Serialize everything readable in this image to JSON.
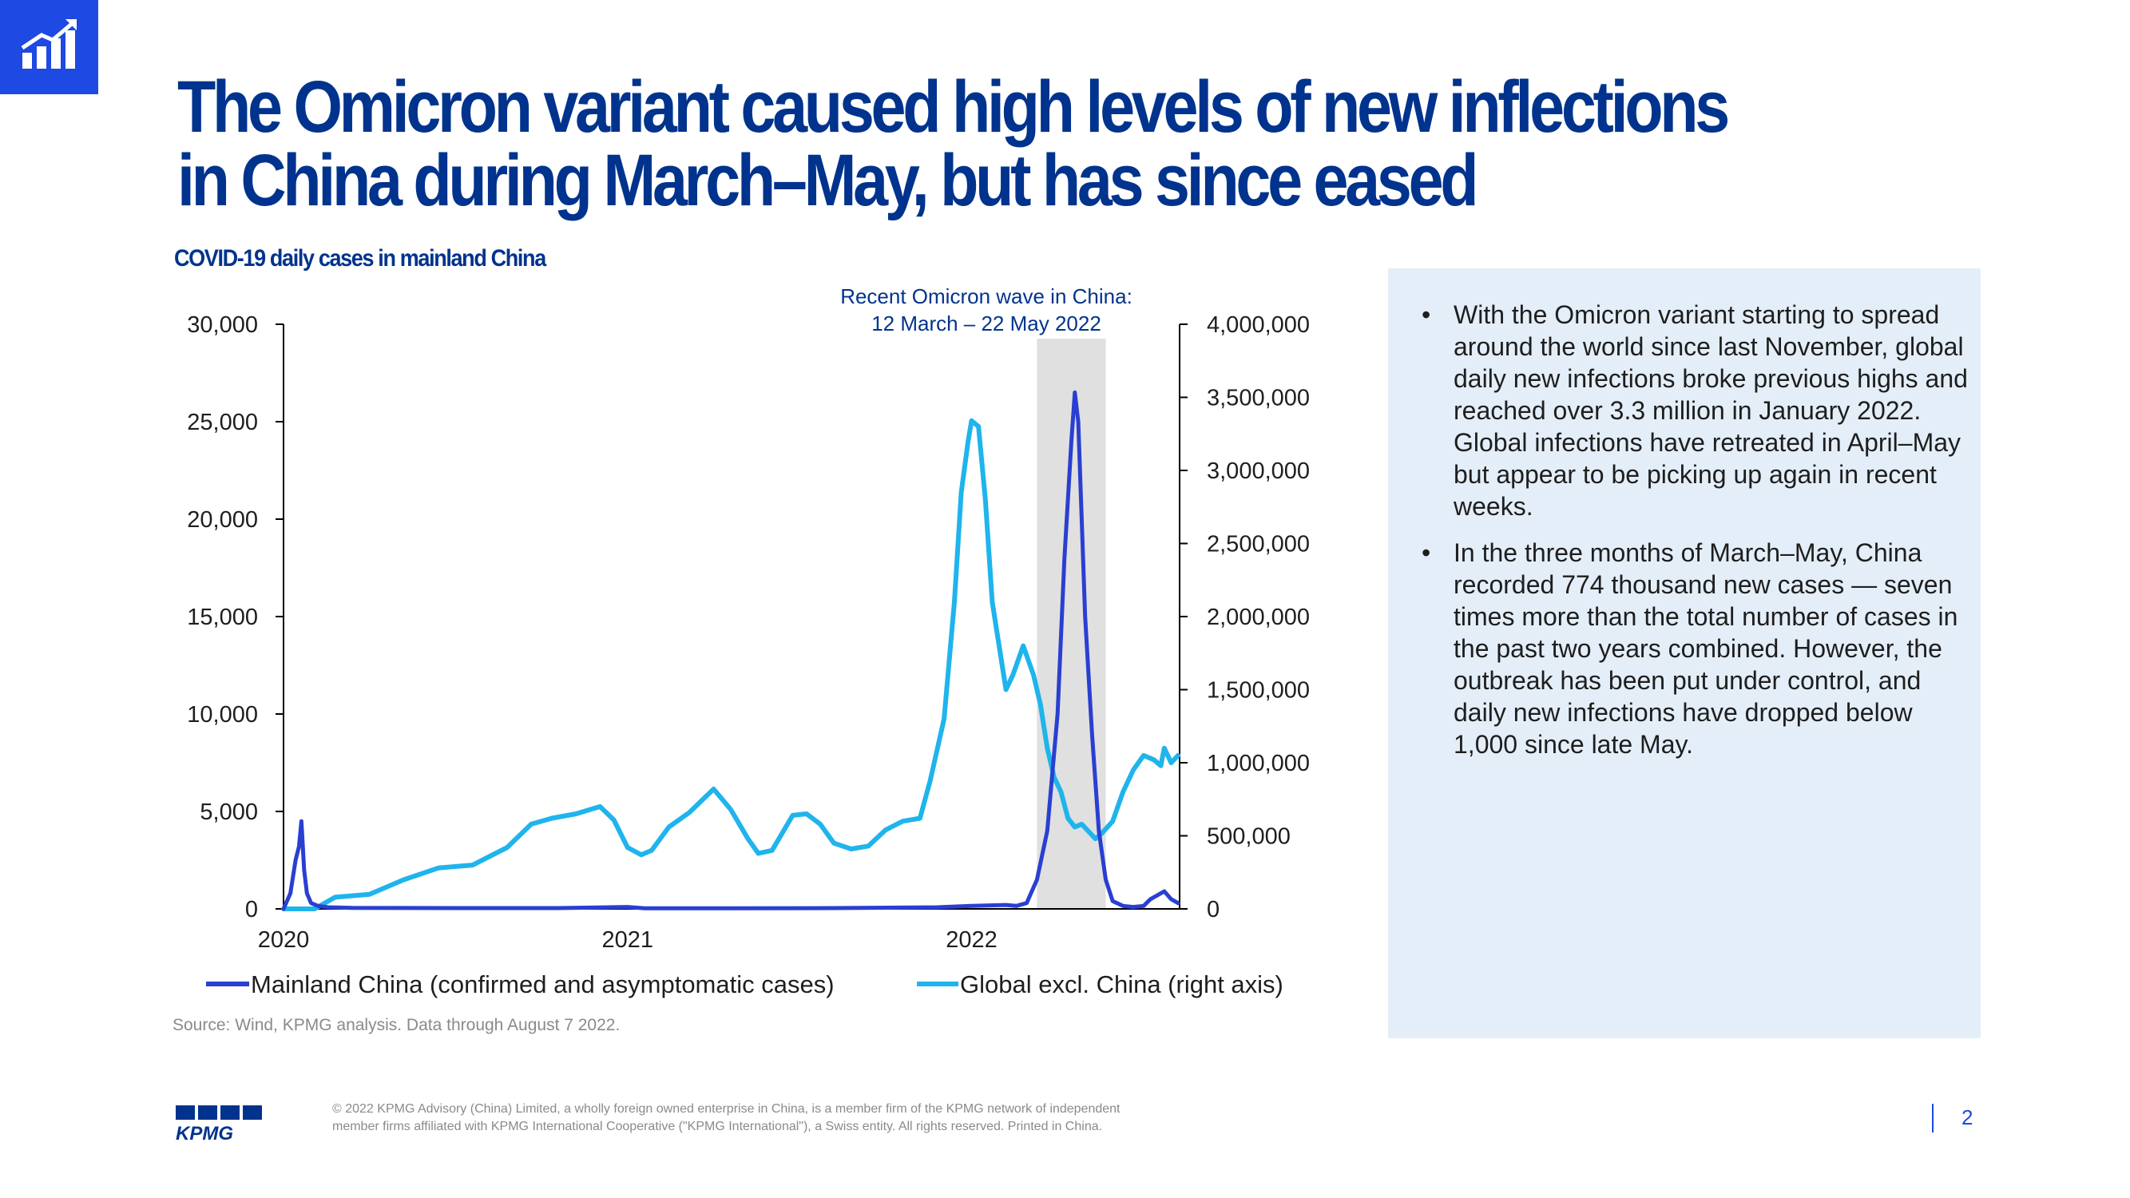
{
  "slide": {
    "title": "The Omicron variant caused high levels of new inflections in China during March–May, but has since eased",
    "subtitle": "COVID-19  daily cases in mainland China",
    "source": "Source: Wind, KPMG analysis. Data through August 7 2022.",
    "logo_text": "KPMG",
    "legal": "© 2022 KPMG Advisory (China) Limited, a wholly foreign owned enterprise in China, is a member firm of the KPMG network of independent  member firms affiliated with KPMG International Cooperative (\"KPMG International\"), a Swiss entity.  All rights reserved. Printed in China.",
    "page_number": "2",
    "badge_icon": "bar-chart-growth-icon"
  },
  "bullets": [
    "With the Omicron variant starting to spread around the world since last November, global daily new infections broke previous highs and reached over 3.3 million in January 2022. Global infections have retreated in April–May but appear to be picking up again in recent weeks.",
    "In the three months of March–May, China recorded 774 thousand new cases — seven times more than the total number of cases in the past two years combined. However, the outbreak has been put under control, and daily new infections have dropped below 1,000 since late May."
  ],
  "colors": {
    "brand": "#00338d",
    "accent": "#1e49e2",
    "mainland": "#2a3fd1",
    "global": "#1fb4ec",
    "shade": "#e0e0e0",
    "panel": "#e4eef9"
  },
  "chart_data": {
    "type": "line",
    "title": "COVID-19  daily cases in mainland China",
    "x_tick_labels": [
      "2020",
      "2021",
      "2022"
    ],
    "x_ticks": [
      2020,
      2021,
      2022
    ],
    "xlim": [
      2020.0,
      2022.6
    ],
    "y_left": {
      "ticks": [
        0,
        5000,
        10000,
        15000,
        20000,
        25000,
        30000
      ],
      "tick_labels": [
        "0",
        "5,000",
        "10,000",
        "15,000",
        "20,000",
        "25,000",
        "30,000"
      ],
      "ylim": [
        0,
        30000
      ]
    },
    "y_right": {
      "ticks": [
        0,
        500000,
        1000000,
        1500000,
        2000000,
        2500000,
        3000000,
        3500000,
        4000000
      ],
      "tick_labels": [
        "0",
        "500,000",
        "1,000,000",
        "1,500,000",
        "2,000,000",
        "2,500,000",
        "3,000,000",
        "3,500,000",
        "4,000,000"
      ],
      "ylim": [
        0,
        4000000
      ]
    },
    "annotation": {
      "line1": "Recent Omicron wave in China:",
      "line2": "12 March – 22 May 2022",
      "start": 2022.19,
      "end": 2022.39
    },
    "legend": [
      "Mainland China (confirmed and asymptomatic cases)",
      "Global excl. China (right axis)"
    ],
    "series": [
      {
        "name": "Mainland China (confirmed and asymptomatic cases)",
        "axis": "left",
        "x": [
          2020.0,
          2020.02,
          2020.035,
          2020.045,
          2020.052,
          2020.06,
          2020.068,
          2020.08,
          2020.1,
          2020.13,
          2020.2,
          2020.5,
          2020.8,
          2021.0,
          2021.05,
          2021.3,
          2021.6,
          2021.9,
          2022.0,
          2022.1,
          2022.13,
          2022.16,
          2022.19,
          2022.22,
          2022.25,
          2022.27,
          2022.29,
          2022.3,
          2022.31,
          2022.32,
          2022.33,
          2022.35,
          2022.37,
          2022.39,
          2022.41,
          2022.44,
          2022.47,
          2022.5,
          2022.52,
          2022.54,
          2022.56,
          2022.58,
          2022.6
        ],
        "values": [
          0,
          800,
          2500,
          3200,
          4500,
          2000,
          800,
          300,
          150,
          80,
          50,
          40,
          40,
          100,
          30,
          30,
          40,
          80,
          150,
          200,
          150,
          300,
          1500,
          4000,
          10000,
          18000,
          24000,
          26500,
          25000,
          20000,
          15000,
          9000,
          4000,
          1500,
          400,
          150,
          100,
          150,
          500,
          700,
          900,
          500,
          300
        ]
      },
      {
        "name": "Global excl. China (right axis)",
        "axis": "right",
        "x": [
          2020.0,
          2020.05,
          2020.09,
          2020.15,
          2020.25,
          2020.35,
          2020.45,
          2020.55,
          2020.65,
          2020.72,
          2020.78,
          2020.85,
          2020.92,
          2020.96,
          2021.0,
          2021.04,
          2021.07,
          2021.12,
          2021.18,
          2021.25,
          2021.3,
          2021.35,
          2021.38,
          2021.42,
          2021.48,
          2021.52,
          2021.56,
          2021.6,
          2021.65,
          2021.7,
          2021.75,
          2021.8,
          2021.85,
          2021.88,
          2021.92,
          2021.95,
          2021.97,
          2021.99,
          2022.0,
          2022.02,
          2022.04,
          2022.06,
          2022.08,
          2022.1,
          2022.12,
          2022.15,
          2022.18,
          2022.2,
          2022.22,
          2022.24,
          2022.26,
          2022.28,
          2022.3,
          2022.32,
          2022.34,
          2022.36,
          2022.38,
          2022.41,
          2022.44,
          2022.47,
          2022.5,
          2022.53,
          2022.55,
          2022.56,
          2022.58,
          2022.6
        ],
        "values": [
          0,
          0,
          0,
          80000,
          100000,
          200000,
          280000,
          300000,
          420000,
          580000,
          620000,
          650000,
          700000,
          610000,
          420000,
          370000,
          400000,
          560000,
          660000,
          820000,
          680000,
          480000,
          380000,
          400000,
          640000,
          650000,
          580000,
          450000,
          410000,
          430000,
          540000,
          600000,
          620000,
          880000,
          1300000,
          2100000,
          2850000,
          3200000,
          3340000,
          3300000,
          2800000,
          2100000,
          1800000,
          1500000,
          1600000,
          1800000,
          1600000,
          1400000,
          1100000,
          900000,
          800000,
          620000,
          560000,
          580000,
          530000,
          480000,
          520000,
          600000,
          800000,
          950000,
          1050000,
          1020000,
          980000,
          1100000,
          1000000,
          1050000
        ]
      }
    ]
  }
}
